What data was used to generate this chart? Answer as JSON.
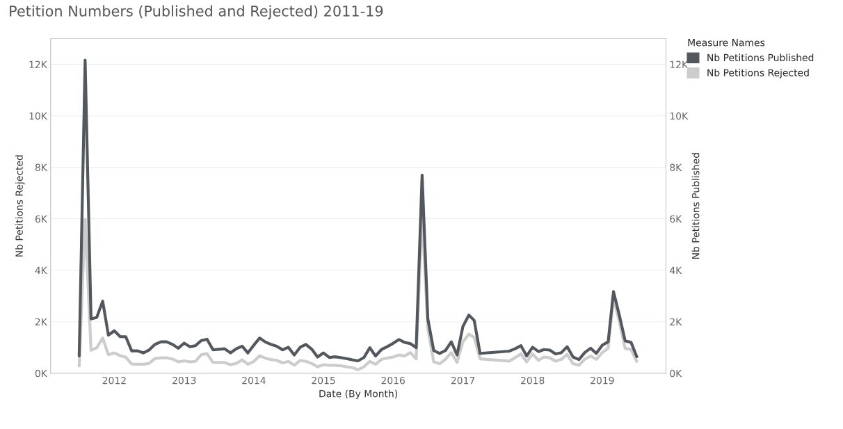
{
  "chart_data": {
    "type": "line",
    "title": "Petition Numbers (Published and Rejected) 2011-19",
    "xlabel": "Date (By Month)",
    "ylabel": "Nb Petitions Rejected",
    "y2label": "Nb Petitions Published",
    "legend_title": "Measure Names",
    "x": [
      "2011-07",
      "2011-08",
      "2011-09",
      "2011-10",
      "2011-11",
      "2011-12",
      "2012-01",
      "2012-02",
      "2012-03",
      "2012-04",
      "2012-05",
      "2012-06",
      "2012-07",
      "2012-08",
      "2012-09",
      "2012-10",
      "2012-11",
      "2012-12",
      "2013-01",
      "2013-02",
      "2013-03",
      "2013-04",
      "2013-05",
      "2013-06",
      "2013-07",
      "2013-08",
      "2013-09",
      "2013-10",
      "2013-11",
      "2013-12",
      "2014-01",
      "2014-02",
      "2014-03",
      "2014-04",
      "2014-05",
      "2014-06",
      "2014-07",
      "2014-08",
      "2014-09",
      "2014-10",
      "2014-11",
      "2014-12",
      "2015-01",
      "2015-02",
      "2015-03",
      "2015-04",
      "2015-05",
      "2015-06",
      "2015-07",
      "2015-08",
      "2015-09",
      "2015-10",
      "2015-11",
      "2015-12",
      "2016-01",
      "2016-02",
      "2016-03",
      "2016-04",
      "2016-05",
      "2016-06",
      "2016-07",
      "2016-08",
      "2016-09",
      "2016-10",
      "2016-11",
      "2016-12",
      "2017-01",
      "2017-02",
      "2017-03",
      "2017-04",
      "2017-09",
      "2017-10",
      "2017-11",
      "2017-12",
      "2018-01",
      "2018-02",
      "2018-03",
      "2018-04",
      "2018-05",
      "2018-06",
      "2018-07",
      "2018-08",
      "2018-09",
      "2018-10",
      "2018-11",
      "2018-12",
      "2019-01",
      "2019-02",
      "2019-03",
      "2019-04",
      "2019-05",
      "2019-06",
      "2019-07"
    ],
    "series": [
      {
        "name": "Nb Petitions Published",
        "color": "#53575e",
        "axis": "y2",
        "values": [
          670,
          12160,
          2110,
          2170,
          2800,
          1480,
          1650,
          1420,
          1420,
          870,
          870,
          790,
          900,
          1120,
          1220,
          1220,
          1120,
          970,
          1170,
          1030,
          1070,
          1270,
          1320,
          910,
          930,
          950,
          790,
          950,
          1050,
          790,
          1090,
          1370,
          1220,
          1120,
          1050,
          910,
          1010,
          710,
          1010,
          1120,
          930,
          630,
          790,
          610,
          640,
          610,
          570,
          520,
          480,
          610,
          990,
          670,
          920,
          1030,
          1160,
          1310,
          1200,
          1150,
          990,
          7700,
          2110,
          880,
          770,
          880,
          1220,
          710,
          1820,
          2260,
          2050,
          770,
          860,
          950,
          1070,
          670,
          1010,
          840,
          920,
          900,
          750,
          800,
          1030,
          630,
          530,
          800,
          970,
          770,
          1090,
          1220,
          3170,
          2240,
          1260,
          1200,
          640
        ]
      },
      {
        "name": "Nb Petitions Rejected",
        "color": "#cccccc",
        "axis": "y",
        "values": [
          280,
          5980,
          890,
          990,
          1370,
          720,
          790,
          680,
          620,
          360,
          350,
          350,
          380,
          570,
          600,
          600,
          550,
          440,
          480,
          440,
          460,
          720,
          760,
          420,
          420,
          420,
          330,
          380,
          520,
          350,
          460,
          680,
          590,
          530,
          500,
          400,
          460,
          310,
          500,
          460,
          380,
          250,
          330,
          310,
          310,
          290,
          250,
          220,
          140,
          250,
          460,
          350,
          540,
          590,
          630,
          710,
          670,
          800,
          560,
          6200,
          1730,
          440,
          370,
          540,
          800,
          420,
          1220,
          1520,
          1390,
          560,
          470,
          600,
          750,
          440,
          750,
          500,
          630,
          600,
          470,
          540,
          730,
          370,
          310,
          540,
          670,
          540,
          800,
          970,
          2920,
          1980,
          970,
          920,
          460
        ]
      }
    ],
    "xlim": [
      "2011-02",
      "2019-12"
    ],
    "xticks": [
      {
        "value": "2012",
        "label": "2012"
      },
      {
        "value": "2013",
        "label": "2013"
      },
      {
        "value": "2014",
        "label": "2014"
      },
      {
        "value": "2015",
        "label": "2015"
      },
      {
        "value": "2016",
        "label": "2016"
      },
      {
        "value": "2017",
        "label": "2017"
      },
      {
        "value": "2018",
        "label": "2018"
      },
      {
        "value": "2019",
        "label": "2019"
      }
    ],
    "ylim": [
      0,
      13000
    ],
    "yticks": [
      {
        "value": 0,
        "label": "0K"
      },
      {
        "value": 2000,
        "label": "2K"
      },
      {
        "value": 4000,
        "label": "4K"
      },
      {
        "value": 6000,
        "label": "6K"
      },
      {
        "value": 8000,
        "label": "8K"
      },
      {
        "value": 10000,
        "label": "10K"
      },
      {
        "value": 12000,
        "label": "12K"
      }
    ],
    "y2lim": [
      0,
      13000
    ],
    "y2ticks": [
      {
        "value": 0,
        "label": "0K"
      },
      {
        "value": 2000,
        "label": "2K"
      },
      {
        "value": 4000,
        "label": "4K"
      },
      {
        "value": 6000,
        "label": "6K"
      },
      {
        "value": 8000,
        "label": "8K"
      },
      {
        "value": 10000,
        "label": "10K"
      },
      {
        "value": 12000,
        "label": "12K"
      }
    ],
    "grid": "y",
    "legend": "top right",
    "line_style": "solid",
    "marker": "none"
  }
}
